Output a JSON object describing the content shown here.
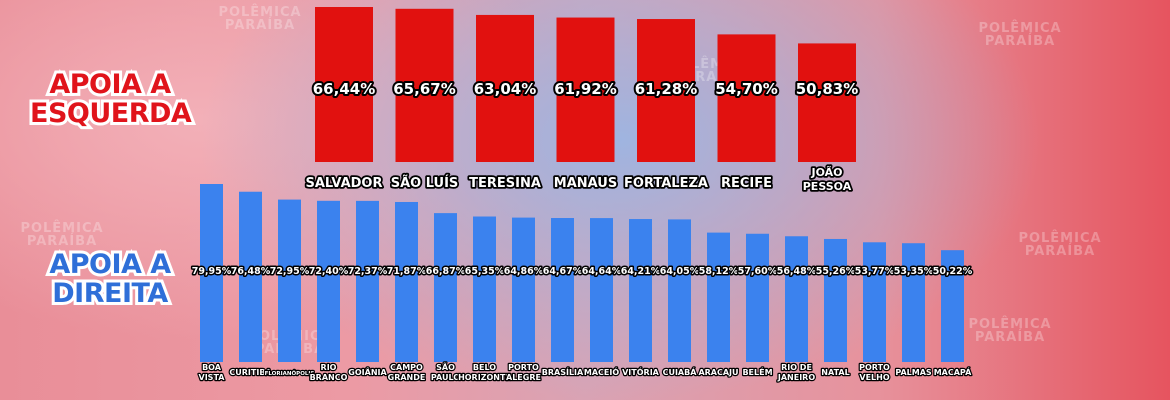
{
  "labels": {
    "left": [
      "APOIA A",
      "ESQUERDA"
    ],
    "right": [
      "APOIA A",
      "DIREITA"
    ]
  },
  "watermark": [
    "POLÊMICA",
    "PARAÍBA"
  ],
  "colors": {
    "left": "#e1110f",
    "right": "#3b82ee"
  },
  "chart_data": [
    {
      "type": "bar",
      "name": "APOIA A ESQUERDA",
      "categories": [
        "SALVADOR",
        "SÃO LUÍS",
        "TERESINA",
        "MANAUS",
        "FORTALEZA",
        "RECIFE",
        "JOÃO PESSOA"
      ],
      "values": [
        66.44,
        65.67,
        63.04,
        61.92,
        61.28,
        54.7,
        50.83
      ],
      "value_labels": [
        "66,44%",
        "65,67%",
        "63,04%",
        "61,92%",
        "61,28%",
        "54,70%",
        "50,83%"
      ]
    },
    {
      "type": "bar",
      "name": "APOIA A DIREITA",
      "categories": [
        "BOA VISTA",
        "CURITIBA",
        "FLORIANÓPOLIS",
        "RIO BRANCO",
        "GOIÂNIA",
        "CAMPO GRANDE",
        "SÃO PAULO",
        "BELO HORIZONTE",
        "PORTO ALEGRE",
        "BRASÍLIA",
        "MACEIÓ",
        "VITÓRIA",
        "CUIABÁ",
        "ARACAJU",
        "BELÉM",
        "RIO DE JANEIRO",
        "NATAL",
        "PORTO VELHO",
        "PALMAS",
        "MACAPÁ"
      ],
      "values": [
        79.95,
        76.48,
        72.95,
        72.4,
        72.37,
        71.87,
        66.87,
        65.35,
        64.86,
        64.67,
        64.64,
        64.21,
        64.05,
        58.12,
        57.6,
        56.48,
        55.26,
        53.77,
        53.35,
        50.22
      ],
      "value_labels": [
        "79,95%",
        "76,48%",
        "72,95%",
        "72,40%",
        "72,37%",
        "71,87%",
        "66,87%",
        "65,35%",
        "64,86%",
        "64,67%",
        "64,64%",
        "64,21%",
        "64,05%",
        "58,12%",
        "57,60%",
        "56,48%",
        "55,26%",
        "53,77%",
        "53,35%",
        "50,22%"
      ]
    }
  ]
}
